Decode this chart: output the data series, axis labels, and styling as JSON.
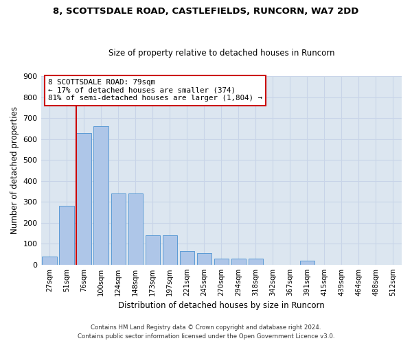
{
  "title1": "8, SCOTTSDALE ROAD, CASTLEFIELDS, RUNCORN, WA7 2DD",
  "title2": "Size of property relative to detached houses in Runcorn",
  "xlabel": "Distribution of detached houses by size in Runcorn",
  "ylabel": "Number of detached properties",
  "footnote1": "Contains HM Land Registry data © Crown copyright and database right 2024.",
  "footnote2": "Contains public sector information licensed under the Open Government Licence v3.0.",
  "bin_labels": [
    "27sqm",
    "51sqm",
    "76sqm",
    "100sqm",
    "124sqm",
    "148sqm",
    "173sqm",
    "197sqm",
    "221sqm",
    "245sqm",
    "270sqm",
    "294sqm",
    "318sqm",
    "342sqm",
    "367sqm",
    "391sqm",
    "415sqm",
    "439sqm",
    "464sqm",
    "488sqm",
    "512sqm"
  ],
  "bar_values": [
    40,
    280,
    630,
    660,
    340,
    340,
    140,
    140,
    65,
    55,
    30,
    30,
    30,
    0,
    0,
    20,
    0,
    0,
    0,
    0,
    0
  ],
  "bar_color": "#aec6e8",
  "bar_edge_color": "#5b9bd5",
  "property_bin_index": 2,
  "annotation_line1": "8 SCOTTSDALE ROAD: 79sqm",
  "annotation_line2": "← 17% of detached houses are smaller (374)",
  "annotation_line3": "81% of semi-detached houses are larger (1,804) →",
  "vline_color": "#cc0000",
  "annotation_box_edge": "#cc0000",
  "ylim": [
    0,
    900
  ],
  "yticks": [
    0,
    100,
    200,
    300,
    400,
    500,
    600,
    700,
    800,
    900
  ],
  "background_color": "#ffffff",
  "grid_color": "#c8d4e8",
  "axes_bg_color": "#dce6f0"
}
